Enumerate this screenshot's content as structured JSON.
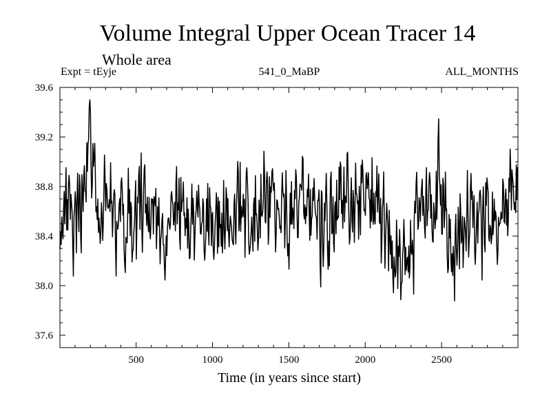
{
  "chart_data": {
    "type": "line",
    "title": "Volume Integral Upper Ocean Tracer 14",
    "subtitle": "Whole area",
    "expt_label": "Expt = tEyje",
    "run_label": "541_0_MaBP",
    "months_label": "ALL_MONTHS",
    "xlabel": "Time (in years since start)",
    "ylabel": "",
    "xlim": [
      1,
      3000
    ],
    "ylim": [
      37.5,
      39.6
    ],
    "xticks_major": [
      500,
      1000,
      1500,
      2000,
      2500
    ],
    "yticks_major": [
      37.6,
      38.0,
      38.4,
      38.8,
      39.2,
      39.6
    ],
    "ytick_labels": [
      "37.6",
      "38.0",
      "38.4",
      "38.8",
      "39.2",
      "39.6"
    ],
    "grid": false,
    "series": [
      {
        "name": "tEyje",
        "color": "#000000",
        "x": [
          1,
          40,
          80,
          120,
          160,
          200,
          240,
          280,
          320,
          360,
          400,
          440,
          480,
          520,
          560,
          600,
          640,
          680,
          720,
          760,
          800,
          840,
          880,
          920,
          960,
          1000,
          1040,
          1080,
          1120,
          1160,
          1200,
          1240,
          1280,
          1320,
          1360,
          1400,
          1440,
          1480,
          1520,
          1560,
          1600,
          1640,
          1680,
          1720,
          1760,
          1800,
          1840,
          1880,
          1920,
          1960,
          2000,
          2040,
          2080,
          2120,
          2160,
          2200,
          2240,
          2280,
          2320,
          2360,
          2400,
          2440,
          2480,
          2520,
          2560,
          2600,
          2640,
          2680,
          2720,
          2760,
          2800,
          2840,
          2880,
          2920,
          2960,
          3000
        ],
        "values": [
          38.45,
          38.7,
          38.5,
          38.6,
          38.75,
          39.3,
          38.7,
          38.55,
          38.6,
          38.5,
          38.7,
          38.5,
          38.55,
          38.6,
          38.45,
          38.55,
          38.6,
          38.45,
          38.5,
          38.6,
          38.7,
          38.55,
          38.5,
          38.4,
          38.55,
          38.6,
          38.45,
          38.5,
          38.55,
          38.7,
          38.65,
          38.5,
          38.55,
          38.6,
          38.75,
          38.8,
          38.6,
          38.5,
          38.6,
          38.7,
          38.85,
          38.7,
          38.6,
          38.55,
          38.6,
          38.7,
          38.8,
          38.75,
          38.65,
          38.7,
          38.85,
          38.75,
          38.6,
          38.55,
          38.4,
          38.2,
          38.0,
          38.2,
          38.35,
          38.5,
          38.65,
          38.8,
          38.85,
          38.6,
          38.2,
          38.3,
          38.45,
          38.55,
          38.5,
          38.4,
          38.5,
          38.6,
          38.65,
          38.7,
          38.75,
          38.65
        ]
      }
    ]
  }
}
